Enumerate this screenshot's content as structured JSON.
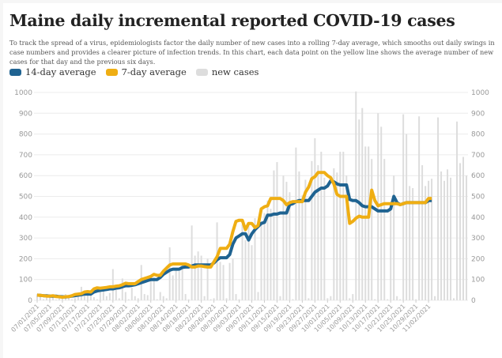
{
  "chart_data": {
    "type": "bar+line",
    "title": "Maine daily incremental reported COVID-19 cases",
    "description": "To track the spread of a virus, epidemiologists factor the daily number of new cases into a rolling 7-day average, which smooths out daily swings in case numbers and provides a clearer picture of infection trends. In this chart, each data point on the yellow line shows the average number of new cases for that day and the previous six days.",
    "legend": [
      {
        "name": "14-day average",
        "color": "#1f6391"
      },
      {
        "name": "7-day average",
        "color": "#efae13"
      },
      {
        "name": "new cases",
        "color": "#dddddd"
      }
    ],
    "xlabel": "",
    "ylabel": "",
    "ylim": [
      0,
      1000
    ],
    "yticks": [
      0,
      100,
      200,
      300,
      400,
      500,
      600,
      700,
      800,
      900,
      1000
    ],
    "start_date": "07/01/2021",
    "xtick_labels": [
      "07/01/2021",
      "07/05/2021",
      "07/09/2021",
      "07/13/2021",
      "07/17/2021",
      "07/21/2021",
      "07/25/2021",
      "07/29/2021",
      "08/02/2021",
      "08/06/2021",
      "08/10/2021",
      "08/14/2021",
      "08/18/2021",
      "08/22/2021",
      "08/26/2021",
      "08/30/2021",
      "09/03/2021",
      "09/07/2021",
      "09/11/2021",
      "09/15/2021",
      "09/19/2021",
      "09/23/2021",
      "09/27/2021",
      "10/01/2021",
      "10/05/2021",
      "10/09/2021",
      "10/13/2021",
      "10/17/2021",
      "10/21/2021",
      "10/25/2021",
      "10/29/2021",
      "11/02/2021"
    ],
    "grid": true,
    "legend_position": "top-left",
    "new_cases": [
      30,
      25,
      5,
      20,
      28,
      20,
      3,
      15,
      25,
      30,
      22,
      4,
      10,
      18,
      65,
      35,
      28,
      45,
      15,
      5,
      40,
      55,
      20,
      35,
      150,
      50,
      10,
      105,
      40,
      5,
      60,
      20,
      10,
      170,
      30,
      25,
      120,
      110,
      5,
      40,
      20,
      10,
      255,
      120,
      150,
      140,
      160,
      30,
      5,
      360,
      215,
      235,
      215,
      20,
      200,
      5,
      10,
      375,
      185,
      170,
      10,
      180,
      200,
      30,
      5,
      365,
      290,
      360,
      265,
      395,
      40,
      370,
      420,
      480,
      440,
      625,
      665,
      20,
      600,
      570,
      520,
      5,
      735,
      620,
      505,
      580,
      10,
      670,
      780,
      650,
      715,
      590,
      10,
      20,
      635,
      615,
      715,
      715,
      600,
      10,
      30,
      1005,
      870,
      925,
      740,
      740,
      680,
      5,
      900,
      835,
      680,
      5,
      470,
      600,
      20,
      5,
      895,
      800,
      550,
      540,
      5,
      885,
      650,
      550,
      575,
      585,
      20,
      880,
      620,
      575,
      630,
      590,
      10,
      860,
      660,
      690,
      600
    ],
    "avg_7day": [
      25,
      24,
      22,
      20,
      20,
      22,
      18,
      17,
      15,
      17,
      18,
      22,
      28,
      30,
      32,
      40,
      42,
      40,
      55,
      60,
      58,
      60,
      62,
      65,
      65,
      68,
      70,
      75,
      82,
      80,
      80,
      80,
      90,
      100,
      105,
      110,
      115,
      125,
      120,
      120,
      140,
      155,
      170,
      175,
      175,
      175,
      175,
      175,
      170,
      160,
      160,
      165,
      165,
      162,
      160,
      160,
      185,
      210,
      250,
      250,
      250,
      270,
      330,
      380,
      385,
      385,
      340,
      370,
      370,
      350,
      360,
      440,
      450,
      455,
      490,
      490,
      490,
      490,
      480,
      460,
      470,
      475,
      475,
      475,
      475,
      520,
      545,
      585,
      595,
      615,
      615,
      615,
      600,
      590,
      560,
      510,
      500,
      500,
      500,
      370,
      380,
      395,
      405,
      400,
      400,
      400,
      530,
      480,
      455,
      460,
      465,
      465,
      465,
      465,
      465,
      460,
      465,
      470,
      470,
      470,
      470,
      470,
      470,
      470,
      490,
      490
    ],
    "avg_14day": [
      25,
      24,
      22,
      22,
      20,
      20,
      20,
      18,
      17,
      16,
      18,
      20,
      22,
      25,
      27,
      30,
      30,
      30,
      40,
      45,
      48,
      50,
      52,
      55,
      55,
      58,
      60,
      65,
      70,
      70,
      72,
      75,
      80,
      85,
      90,
      95,
      100,
      100,
      100,
      110,
      125,
      135,
      145,
      150,
      150,
      150,
      158,
      160,
      160,
      165,
      170,
      170,
      170,
      170,
      170,
      170,
      180,
      195,
      205,
      205,
      205,
      220,
      270,
      300,
      310,
      320,
      320,
      290,
      320,
      340,
      355,
      370,
      375,
      410,
      410,
      415,
      415,
      420,
      420,
      420,
      460,
      465,
      475,
      480,
      480,
      480,
      480,
      500,
      520,
      530,
      540,
      540,
      550,
      575,
      570,
      560,
      555,
      555,
      555,
      485,
      480,
      480,
      470,
      455,
      450,
      450,
      450,
      440,
      430,
      430,
      430,
      430,
      440,
      500,
      470,
      460,
      465,
      470,
      470,
      470,
      470,
      470,
      470,
      470,
      480,
      480
    ]
  }
}
